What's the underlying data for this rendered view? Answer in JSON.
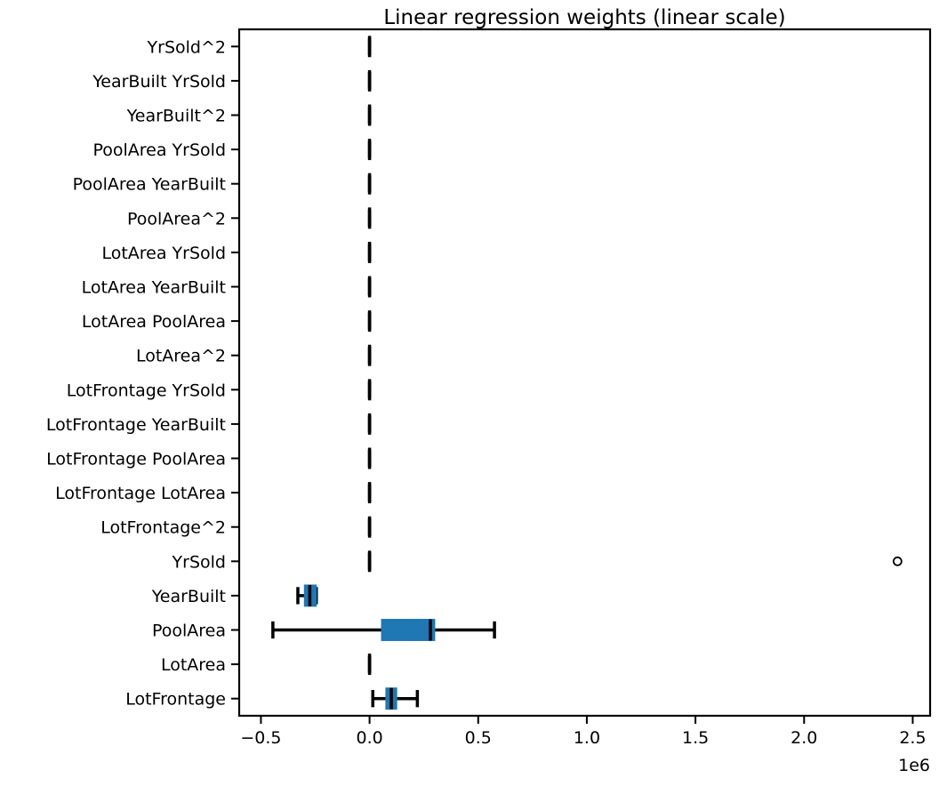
{
  "chart_data": {
    "type": "boxplot",
    "orientation": "horizontal",
    "title": "Linear regression weights (linear scale)",
    "xlabel": "",
    "ylabel": "",
    "x_offset_label": "1e6",
    "xlim": [
      -0.6,
      2.58
    ],
    "xticks": [
      -0.5,
      0.0,
      0.5,
      1.0,
      1.5,
      2.0,
      2.5
    ],
    "xtick_labels": [
      "−0.5",
      "0.0",
      "0.5",
      "1.0",
      "1.5",
      "2.0",
      "2.5"
    ],
    "grid": false,
    "box_color": "#1f77b4",
    "categories": [
      "LotFrontage",
      "LotArea",
      "PoolArea",
      "YearBuilt",
      "YrSold",
      "LotFrontage^2",
      "LotFrontage LotArea",
      "LotFrontage PoolArea",
      "LotFrontage YearBuilt",
      "LotFrontage YrSold",
      "LotArea^2",
      "LotArea PoolArea",
      "LotArea YearBuilt",
      "LotArea YrSold",
      "PoolArea^2",
      "PoolArea YearBuilt",
      "PoolArea YrSold",
      "YearBuilt^2",
      "YearBuilt YrSold",
      "YrSold^2"
    ],
    "boxes": [
      {
        "whislo": 0.015,
        "q1": 0.075,
        "med": 0.1,
        "q3": 0.125,
        "whishi": 0.22,
        "fliers": []
      },
      {
        "whislo": 0.0,
        "q1": 0.0,
        "med": 0.0,
        "q3": 0.0,
        "whishi": 0.0,
        "fliers": []
      },
      {
        "whislo": -0.445,
        "q1": 0.055,
        "med": 0.28,
        "q3": 0.3,
        "whishi": 0.575,
        "fliers": []
      },
      {
        "whislo": -0.33,
        "q1": -0.3,
        "med": -0.275,
        "q3": -0.245,
        "whishi": -0.245,
        "fliers": []
      },
      {
        "whislo": 0.0,
        "q1": 0.0,
        "med": 0.0,
        "q3": 0.0,
        "whishi": 0.0,
        "fliers": [
          2.43
        ]
      },
      {
        "whislo": 0.0,
        "q1": 0.0,
        "med": 0.0,
        "q3": 0.0,
        "whishi": 0.0,
        "fliers": []
      },
      {
        "whislo": 0.0,
        "q1": 0.0,
        "med": 0.0,
        "q3": 0.0,
        "whishi": 0.0,
        "fliers": []
      },
      {
        "whislo": 0.0,
        "q1": 0.0,
        "med": 0.0,
        "q3": 0.0,
        "whishi": 0.0,
        "fliers": []
      },
      {
        "whislo": 0.0,
        "q1": 0.0,
        "med": 0.0,
        "q3": 0.0,
        "whishi": 0.0,
        "fliers": []
      },
      {
        "whislo": 0.0,
        "q1": 0.0,
        "med": 0.0,
        "q3": 0.0,
        "whishi": 0.0,
        "fliers": []
      },
      {
        "whislo": 0.0,
        "q1": 0.0,
        "med": 0.0,
        "q3": 0.0,
        "whishi": 0.0,
        "fliers": []
      },
      {
        "whislo": 0.0,
        "q1": 0.0,
        "med": 0.0,
        "q3": 0.0,
        "whishi": 0.0,
        "fliers": []
      },
      {
        "whislo": 0.0,
        "q1": 0.0,
        "med": 0.0,
        "q3": 0.0,
        "whishi": 0.0,
        "fliers": []
      },
      {
        "whislo": 0.0,
        "q1": 0.0,
        "med": 0.0,
        "q3": 0.0,
        "whishi": 0.0,
        "fliers": []
      },
      {
        "whislo": 0.0,
        "q1": 0.0,
        "med": 0.0,
        "q3": 0.0,
        "whishi": 0.0,
        "fliers": []
      },
      {
        "whislo": 0.0,
        "q1": 0.0,
        "med": 0.0,
        "q3": 0.0,
        "whishi": 0.0,
        "fliers": []
      },
      {
        "whislo": 0.0,
        "q1": 0.0,
        "med": 0.0,
        "q3": 0.0,
        "whishi": 0.0,
        "fliers": []
      },
      {
        "whislo": 0.0,
        "q1": 0.0,
        "med": 0.0,
        "q3": 0.0,
        "whishi": 0.0,
        "fliers": []
      },
      {
        "whislo": 0.0,
        "q1": 0.0,
        "med": 0.0,
        "q3": 0.0,
        "whishi": 0.0,
        "fliers": []
      },
      {
        "whislo": 0.0,
        "q1": 0.0,
        "med": 0.0,
        "q3": 0.0,
        "whishi": 0.0,
        "fliers": []
      }
    ]
  }
}
